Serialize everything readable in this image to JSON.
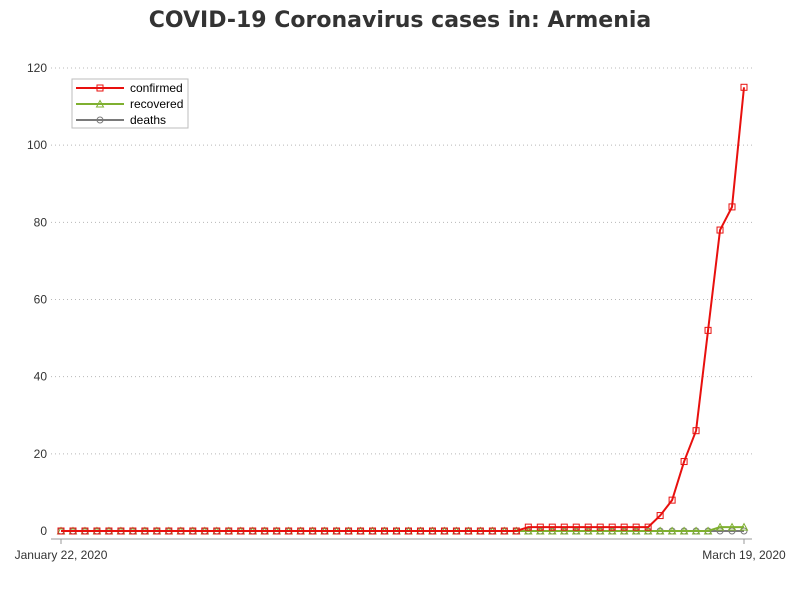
{
  "chart_data": {
    "type": "line",
    "title": "COVID-19 Coronavirus cases in: Armenia",
    "xlabel": "",
    "ylabel": "",
    "x_range": [
      "January 22, 2020",
      "March 19, 2020"
    ],
    "x_tick_labels": [
      "January 22, 2020",
      "March 19, 2020"
    ],
    "ylim": [
      0,
      120
    ],
    "y_ticks": [
      0,
      20,
      40,
      60,
      80,
      100,
      120
    ],
    "grid": "horizontal dotted",
    "legend_position": "top-left",
    "series": [
      {
        "name": "confirmed",
        "color": "#e8100e",
        "marker": "square",
        "values": [
          0,
          0,
          0,
          0,
          0,
          0,
          0,
          0,
          0,
          0,
          0,
          0,
          0,
          0,
          0,
          0,
          0,
          0,
          0,
          0,
          0,
          0,
          0,
          0,
          0,
          0,
          0,
          0,
          0,
          0,
          0,
          0,
          0,
          0,
          0,
          0,
          0,
          0,
          0,
          1,
          1,
          1,
          1,
          1,
          1,
          1,
          1,
          1,
          1,
          1,
          4,
          8,
          18,
          26,
          52,
          78,
          84,
          115
        ]
      },
      {
        "name": "recovered",
        "color": "#7fb030",
        "marker": "triangle",
        "values": [
          0,
          0,
          0,
          0,
          0,
          0,
          0,
          0,
          0,
          0,
          0,
          0,
          0,
          0,
          0,
          0,
          0,
          0,
          0,
          0,
          0,
          0,
          0,
          0,
          0,
          0,
          0,
          0,
          0,
          0,
          0,
          0,
          0,
          0,
          0,
          0,
          0,
          0,
          0,
          0,
          0,
          0,
          0,
          0,
          0,
          0,
          0,
          0,
          0,
          0,
          0,
          0,
          0,
          0,
          0,
          1,
          1,
          1
        ]
      },
      {
        "name": "deaths",
        "color": "#7a7a7a",
        "marker": "circle",
        "values": [
          0,
          0,
          0,
          0,
          0,
          0,
          0,
          0,
          0,
          0,
          0,
          0,
          0,
          0,
          0,
          0,
          0,
          0,
          0,
          0,
          0,
          0,
          0,
          0,
          0,
          0,
          0,
          0,
          0,
          0,
          0,
          0,
          0,
          0,
          0,
          0,
          0,
          0,
          0,
          0,
          0,
          0,
          0,
          0,
          0,
          0,
          0,
          0,
          0,
          0,
          0,
          0,
          0,
          0,
          0,
          0,
          0,
          0
        ]
      }
    ]
  }
}
